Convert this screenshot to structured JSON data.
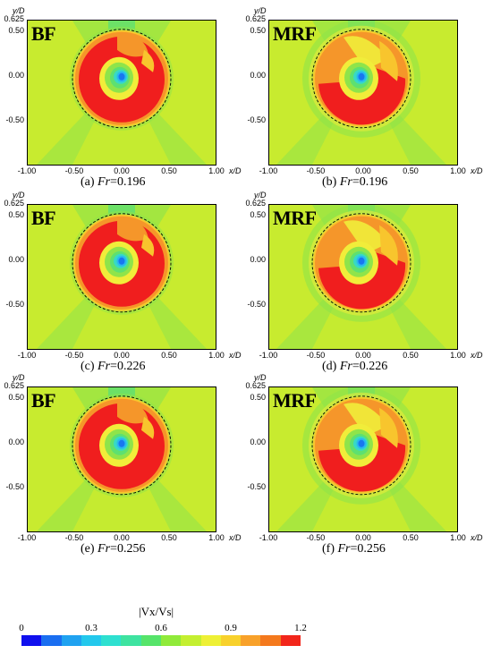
{
  "panels": [
    {
      "model": "BF",
      "caption_prefix": "(a) ",
      "caption_var": "Fr",
      "caption_value": "=0.196",
      "variant": "bf1"
    },
    {
      "model": "MRF",
      "caption_prefix": "(b) ",
      "caption_var": "Fr",
      "caption_value": "=0.196",
      "variant": "mrf1"
    },
    {
      "model": "BF",
      "caption_prefix": "(c) ",
      "caption_var": "Fr",
      "caption_value": "=0.226",
      "variant": "bf2"
    },
    {
      "model": "MRF",
      "caption_prefix": "(d) ",
      "caption_var": "Fr",
      "caption_value": "=0.226",
      "variant": "mrf2"
    },
    {
      "model": "BF",
      "caption_prefix": "(e) ",
      "caption_var": "Fr",
      "caption_value": "=0.256",
      "variant": "bf3"
    },
    {
      "model": "MRF",
      "caption_prefix": "(f) ",
      "caption_var": "Fr",
      "caption_value": "=0.256",
      "variant": "mrf3"
    }
  ],
  "axes": {
    "ylabel": "y/D",
    "xlabel": "x/D",
    "y_ticks": [
      "0.625",
      "0.50",
      "0.00",
      "-0.50"
    ],
    "x_ticks": [
      "-1.00",
      "-0.50",
      "0.00",
      "0.50",
      "1.00"
    ],
    "xlim": [
      -1.0,
      1.0
    ],
    "ylim": [
      -1.0,
      0.625
    ]
  },
  "colorbar": {
    "title": "|Vx/Vs|",
    "ticks": [
      "0",
      "0.3",
      "0.6",
      "0.9",
      "1.2"
    ],
    "range": [
      0,
      1.2
    ],
    "colors": [
      "#1010ee",
      "#1a6ef0",
      "#20a2f0",
      "#23c8ec",
      "#2ee0d0",
      "#3ee3a0",
      "#56e46a",
      "#90ea3a",
      "#c4ef30",
      "#eef035",
      "#f8d12c",
      "#f8a12a",
      "#f4791d",
      "#f2261b"
    ]
  },
  "field_colors": {
    "background": "#c8eb2f",
    "light_green": "#8fe44a",
    "green": "#5ee070",
    "cyan": "#37d9c6",
    "light_blue": "#28b7f0",
    "blue": "#1877f0",
    "yellow": "#f1ed3a",
    "gold": "#f8c52d",
    "orange": "#f5962a",
    "red": "#f01e1e"
  }
}
